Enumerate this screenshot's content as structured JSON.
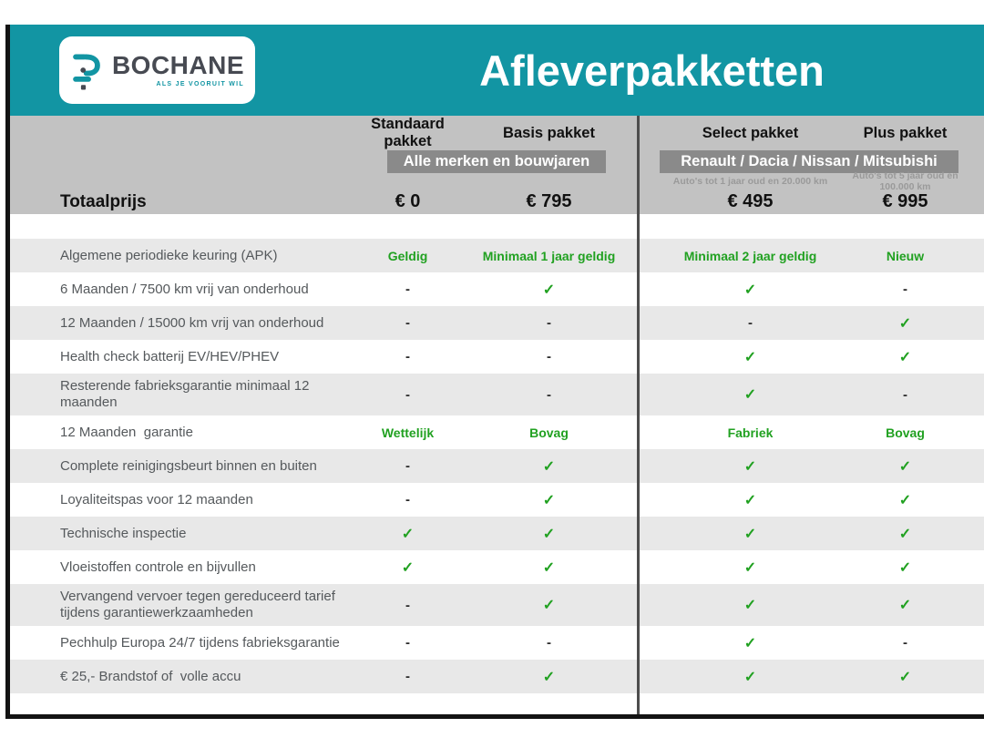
{
  "header": {
    "title": "Afleverpakketten",
    "logo": {
      "brand": "BOCHANE",
      "tagline": "ALS JE VOORUIT WIL"
    }
  },
  "pricing": {
    "total_label": "Totaalprijs",
    "banners": [
      {
        "label": "Alle merken en bouwjaren"
      },
      {
        "label": "Renault / Dacia / Nissan / Mitsubishi"
      }
    ],
    "columns": [
      {
        "name": "Standaard pakket",
        "price": "€ 0"
      },
      {
        "name": "Basis pakket",
        "price": "€ 795"
      },
      {
        "name": "Select pakket",
        "price": "€ 495",
        "subtext": "Auto's tot 1 jaar oud en 20.000 km"
      },
      {
        "name": "Plus pakket",
        "price": "€ 995",
        "subtext": "Auto's tot 5 jaar oud en 100.000 km"
      }
    ]
  },
  "features": {
    "rows": [
      {
        "label": "Algemene periodieke keuring (APK)",
        "values": [
          "Geldig",
          "Minimaal 1 jaar geldig",
          "Minimaal 2 jaar geldig",
          "Nieuw"
        ]
      },
      {
        "label": "6 Maanden / 7500 km vrij van onderhoud",
        "values": [
          "-",
          "✓",
          "✓",
          "-"
        ]
      },
      {
        "label": "12 Maanden / 15000 km vrij van onderhoud",
        "values": [
          "-",
          "-",
          "-",
          "✓"
        ]
      },
      {
        "label": "Health check batterij EV/HEV/PHEV",
        "values": [
          "-",
          "-",
          "✓",
          "✓"
        ]
      },
      {
        "label": "Resterende fabrieksgarantie minimaal 12 maanden",
        "values": [
          "-",
          "-",
          "✓",
          "-"
        ]
      },
      {
        "label": "12 Maanden  garantie",
        "values": [
          "Wettelijk",
          "Bovag",
          "Fabriek",
          "Bovag"
        ]
      },
      {
        "label": "Complete reinigingsbeurt binnen en buiten",
        "values": [
          "-",
          "✓",
          "✓",
          "✓"
        ]
      },
      {
        "label": "Loyaliteitspas voor 12 maanden",
        "values": [
          "-",
          "✓",
          "✓",
          "✓"
        ]
      },
      {
        "label": "Technische inspectie",
        "values": [
          "✓",
          "✓",
          "✓",
          "✓"
        ]
      },
      {
        "label": "Vloeistoffen controle en bijvullen",
        "values": [
          "✓",
          "✓",
          "✓",
          "✓"
        ]
      },
      {
        "label": "Vervangend vervoer tegen gereduceerd tarief\ntijdens garantiewerkzaamheden",
        "values": [
          "-",
          "✓",
          "✓",
          "✓"
        ]
      },
      {
        "label": "Pechhulp Europa 24/7 tijdens fabrieksgarantie",
        "values": [
          "-",
          "-",
          "✓",
          "-"
        ]
      },
      {
        "label": "€ 25,- Brandstof of  volle accu",
        "values": [
          "-",
          "✓",
          "✓",
          "✓"
        ]
      }
    ]
  },
  "colors": {
    "teal": "#1295A3",
    "green": "#21A121",
    "band-gray": "#C2C2C2",
    "banner-gray": "#8A8A8A",
    "row-gray": "#E8E8E8",
    "border-black": "#131313"
  }
}
